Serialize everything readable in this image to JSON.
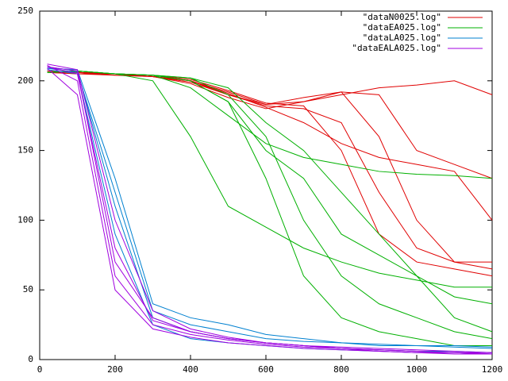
{
  "chart_data": {
    "type": "line",
    "x": [
      20,
      100,
      200,
      300,
      400,
      500,
      600,
      700,
      800,
      900,
      1000,
      1100,
      1200
    ],
    "xlim": [
      0,
      1200
    ],
    "xticks": [
      0,
      200,
      400,
      600,
      800,
      1000,
      1200
    ],
    "ylim": [
      0,
      250
    ],
    "yticks": [
      0,
      50,
      100,
      150,
      200,
      250
    ],
    "legend": "top-right",
    "series": [
      {
        "name": "\"dataN0025.log\"",
        "color": "#e00000",
        "values": [
          [
            206,
            206,
            205,
            203,
            200,
            192,
            183,
            185,
            190,
            195,
            197,
            200,
            190
          ],
          [
            207,
            206,
            204,
            203,
            199,
            190,
            182,
            180,
            170,
            120,
            80,
            70,
            65
          ],
          [
            206,
            205,
            205,
            204,
            201,
            193,
            184,
            182,
            150,
            90,
            70,
            65,
            60
          ],
          [
            207,
            206,
            205,
            203,
            198,
            188,
            180,
            185,
            192,
            160,
            100,
            70,
            70
          ],
          [
            206,
            205,
            204,
            203,
            200,
            191,
            181,
            170,
            155,
            145,
            140,
            135,
            100
          ],
          [
            206,
            206,
            205,
            203,
            200,
            190,
            183,
            188,
            192,
            190,
            150,
            140,
            130
          ]
        ]
      },
      {
        "name": "\"dataEA025.log\"",
        "color": "#00b000",
        "values": [
          [
            206,
            207,
            205,
            200,
            160,
            110,
            95,
            80,
            70,
            62,
            57,
            52,
            52
          ],
          [
            206,
            207,
            205,
            204,
            195,
            175,
            155,
            145,
            140,
            135,
            133,
            132,
            130
          ],
          [
            206,
            207,
            205,
            204,
            200,
            185,
            130,
            60,
            30,
            20,
            15,
            10,
            10
          ],
          [
            206,
            207,
            205,
            204,
            202,
            190,
            160,
            100,
            60,
            40,
            30,
            20,
            15
          ],
          [
            206,
            207,
            205,
            204,
            200,
            185,
            150,
            130,
            90,
            75,
            60,
            45,
            40
          ],
          [
            206,
            207,
            205,
            204,
            202,
            195,
            170,
            150,
            120,
            90,
            60,
            30,
            20
          ]
        ]
      },
      {
        "name": "\"dataLA025.log\"",
        "color": "#0080d0",
        "values": [
          [
            209,
            208,
            130,
            40,
            30,
            25,
            18,
            15,
            12,
            10,
            10,
            9,
            8
          ],
          [
            210,
            207,
            110,
            30,
            20,
            15,
            12,
            10,
            8,
            7,
            6,
            6,
            5
          ],
          [
            208,
            205,
            90,
            25,
            15,
            12,
            10,
            8,
            7,
            6,
            5,
            5,
            4
          ],
          [
            209,
            206,
            120,
            35,
            25,
            20,
            15,
            13,
            12,
            11,
            10,
            10,
            9
          ]
        ]
      },
      {
        "name": "\"dataEALA025.log\"",
        "color": "#a000e0",
        "values": [
          [
            210,
            205,
            80,
            28,
            20,
            15,
            12,
            10,
            8,
            7,
            6,
            5,
            5
          ],
          [
            211,
            200,
            60,
            25,
            18,
            14,
            11,
            9,
            8,
            7,
            6,
            5,
            4
          ],
          [
            209,
            190,
            50,
            22,
            16,
            12,
            10,
            8,
            7,
            6,
            5,
            4,
            4
          ],
          [
            212,
            208,
            100,
            35,
            22,
            16,
            12,
            10,
            9,
            8,
            7,
            6,
            5
          ],
          [
            210,
            207,
            70,
            30,
            20,
            15,
            12,
            10,
            8,
            6,
            5,
            5,
            4
          ]
        ]
      }
    ]
  }
}
